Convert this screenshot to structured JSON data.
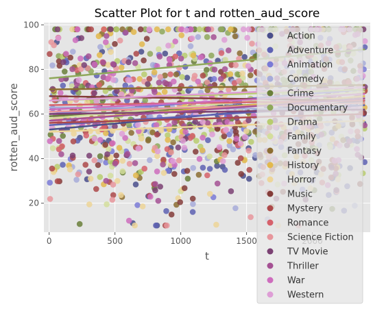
{
  "chart_data": {
    "type": "scatter",
    "title": "Scatter Plot for t and rotten_aud_score",
    "xlabel": "t",
    "ylabel": "rotten_aud_score",
    "xlim": [
      -40,
      2440
    ],
    "ylim": [
      7,
      101
    ],
    "xticks": [
      "0",
      "500",
      "1000",
      "1500",
      "2000"
    ],
    "xtick_values": [
      0,
      500,
      1000,
      1500,
      2000
    ],
    "yticks": [
      "20",
      "40",
      "60",
      "80",
      "100"
    ],
    "ytick_values": [
      20,
      40,
      60,
      80,
      100
    ],
    "grid": true,
    "background": "#E5E5E5",
    "legend_position": "right",
    "series": [
      {
        "name": "Action",
        "color": "#4A4F8C",
        "trend": [
          53,
          66
        ]
      },
      {
        "name": "Adventure",
        "color": "#5E62B3",
        "trend": [
          55,
          64
        ]
      },
      {
        "name": "Animation",
        "color": "#7A7AD6",
        "trend": [
          60,
          71
        ]
      },
      {
        "name": "Comedy",
        "color": "#A7ABD9",
        "trend": [
          63,
          62
        ]
      },
      {
        "name": "Crime",
        "color": "#6A7F3A",
        "trend": [
          59,
          67
        ]
      },
      {
        "name": "Documentary",
        "color": "#8FA85A",
        "trend": [
          76,
          89
        ]
      },
      {
        "name": "Drama",
        "color": "#B8CC6E",
        "trend": [
          66,
          71
        ]
      },
      {
        "name": "Family",
        "color": "#D4DE9C",
        "trend": [
          58,
          70
        ]
      },
      {
        "name": "Fantasy",
        "color": "#8C6D31",
        "trend": [
          71,
          73
        ]
      },
      {
        "name": "History",
        "color": "#E3B84D",
        "trend": [
          57,
          68
        ]
      },
      {
        "name": "Horror",
        "color": "#EDD598",
        "trend": [
          52,
          57
        ]
      },
      {
        "name": "Music",
        "color": "#843C39",
        "trend": [
          68,
          66
        ]
      },
      {
        "name": "Mystery",
        "color": "#AD494A",
        "trend": [
          56,
          60
        ]
      },
      {
        "name": "Romance",
        "color": "#D6616B",
        "trend": [
          64,
          66
        ]
      },
      {
        "name": "Science Fiction",
        "color": "#E7969C",
        "trend": [
          61,
          65
        ]
      },
      {
        "name": "TV Movie",
        "color": "#7B4173",
        "trend": [
          60,
          62
        ]
      },
      {
        "name": "Thriller",
        "color": "#A55194",
        "trend": [
          57,
          67
        ]
      },
      {
        "name": "War",
        "color": "#CE6DBD",
        "trend": [
          62,
          69
        ]
      },
      {
        "name": "Western",
        "color": "#DE9ED6",
        "trend": [
          66,
          72
        ]
      }
    ]
  }
}
